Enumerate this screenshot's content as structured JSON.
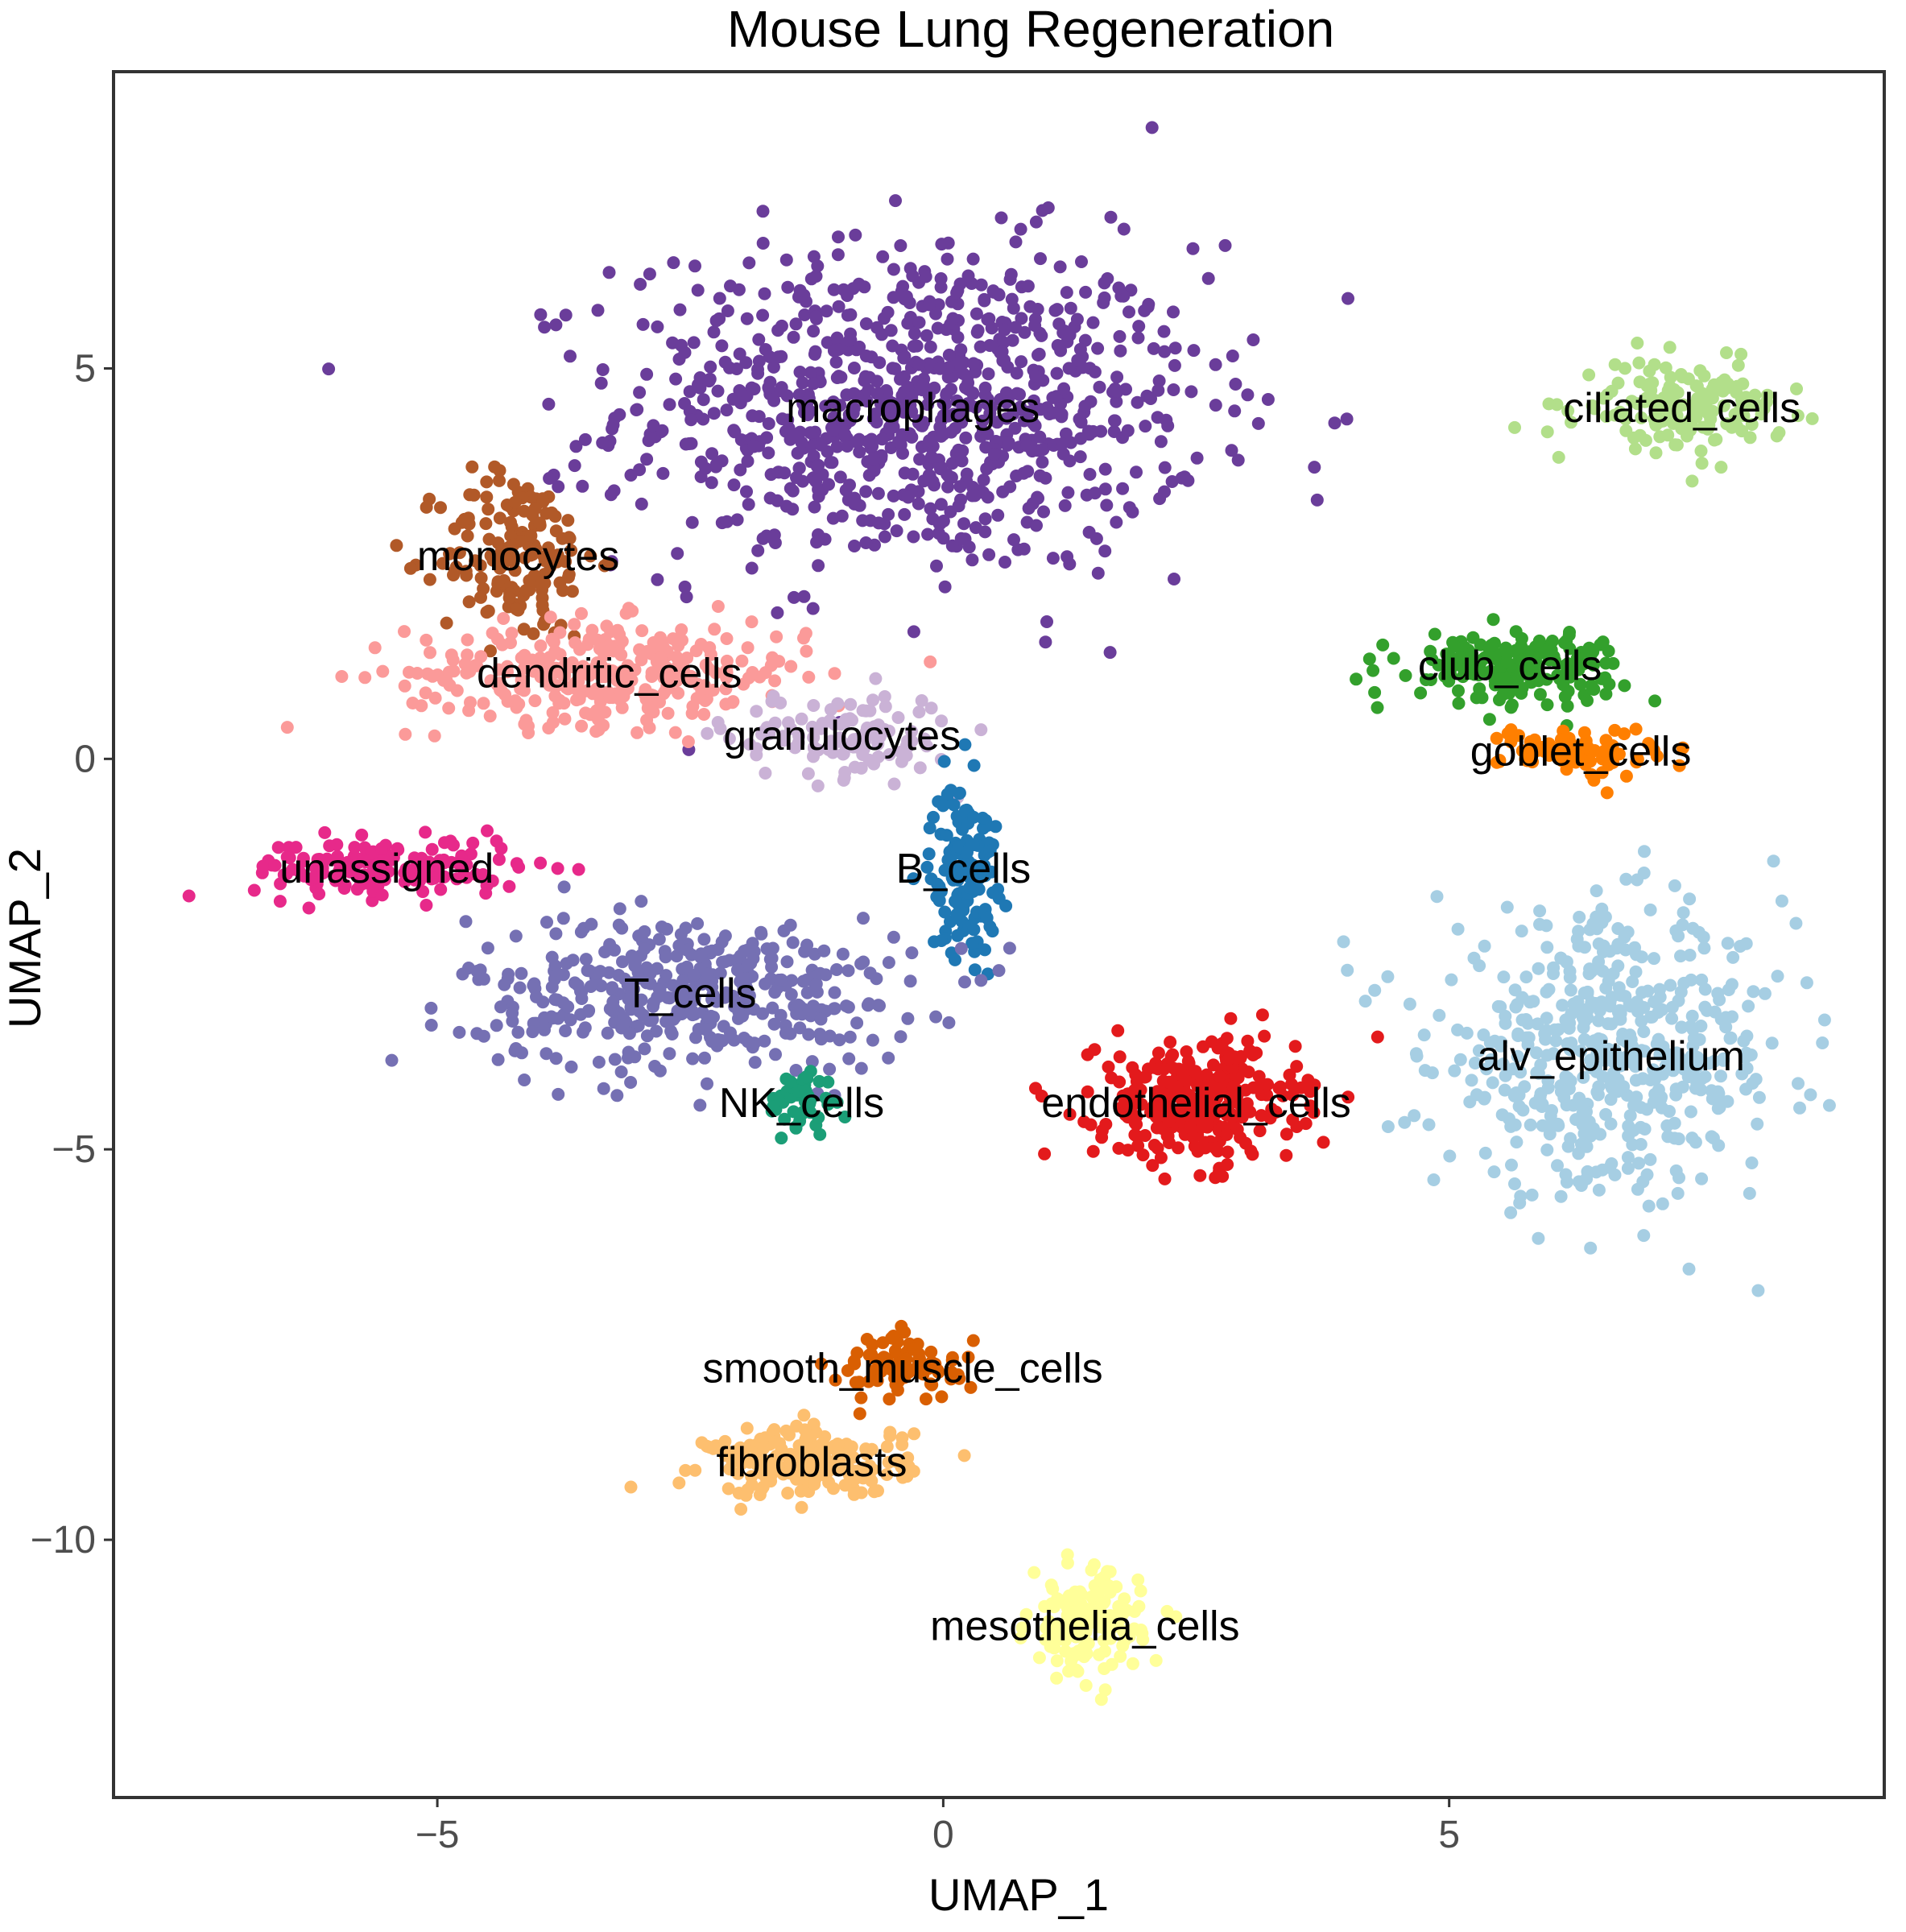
{
  "chart_data": {
    "type": "scatter",
    "title": "Mouse Lung Regeneration",
    "xlabel": "UMAP_1",
    "ylabel": "UMAP_2",
    "xlim": [
      -8.2,
      9.3
    ],
    "ylim": [
      -13.3,
      8.8
    ],
    "x_ticks": [
      -5,
      0,
      5
    ],
    "y_ticks": [
      5,
      0,
      -5,
      -10
    ],
    "grid": false,
    "legend": "none",
    "clusters": [
      {
        "label": "macrophages",
        "x": -0.3,
        "y": 4.5,
        "color": "#6a3d9a"
      },
      {
        "label": "monocytes",
        "x": -4.2,
        "y": 2.6,
        "color": "#b15928"
      },
      {
        "label": "dendritic_cells",
        "x": -3.3,
        "y": 1.1,
        "color": "#fb9a99"
      },
      {
        "label": "granulocytes",
        "x": -1.0,
        "y": 0.3,
        "color": "#cab2d6"
      },
      {
        "label": "unassigned",
        "x": -5.5,
        "y": -1.4,
        "color": "#e7298a"
      },
      {
        "label": "B_cells",
        "x": 0.2,
        "y": -1.4,
        "color": "#1f78b4"
      },
      {
        "label": "T_cells",
        "x": -2.5,
        "y": -3.0,
        "color": "#7570b3"
      },
      {
        "label": "NK_cells",
        "x": -1.4,
        "y": -4.4,
        "color": "#1b9e77"
      },
      {
        "label": "endothelial_cells",
        "x": 2.5,
        "y": -4.4,
        "color": "#e31a1c"
      },
      {
        "label": "alv_epithelium",
        "x": 6.6,
        "y": -3.8,
        "color": "#a6cee3"
      },
      {
        "label": "ciliated_cells",
        "x": 7.3,
        "y": 4.5,
        "color": "#b2df8a"
      },
      {
        "label": "club_cells",
        "x": 5.6,
        "y": 1.2,
        "color": "#33a02c"
      },
      {
        "label": "goblet_cells",
        "x": 6.3,
        "y": 0.1,
        "color": "#ff7f00"
      },
      {
        "label": "smooth_muscle_cells",
        "x": -0.4,
        "y": -7.8,
        "color": "#d95f02"
      },
      {
        "label": "fibroblasts",
        "x": -1.3,
        "y": -9.0,
        "color": "#fdbf6f"
      },
      {
        "label": "mesothelia_cells",
        "x": 1.4,
        "y": -11.1,
        "color": "#ffff99"
      }
    ]
  }
}
